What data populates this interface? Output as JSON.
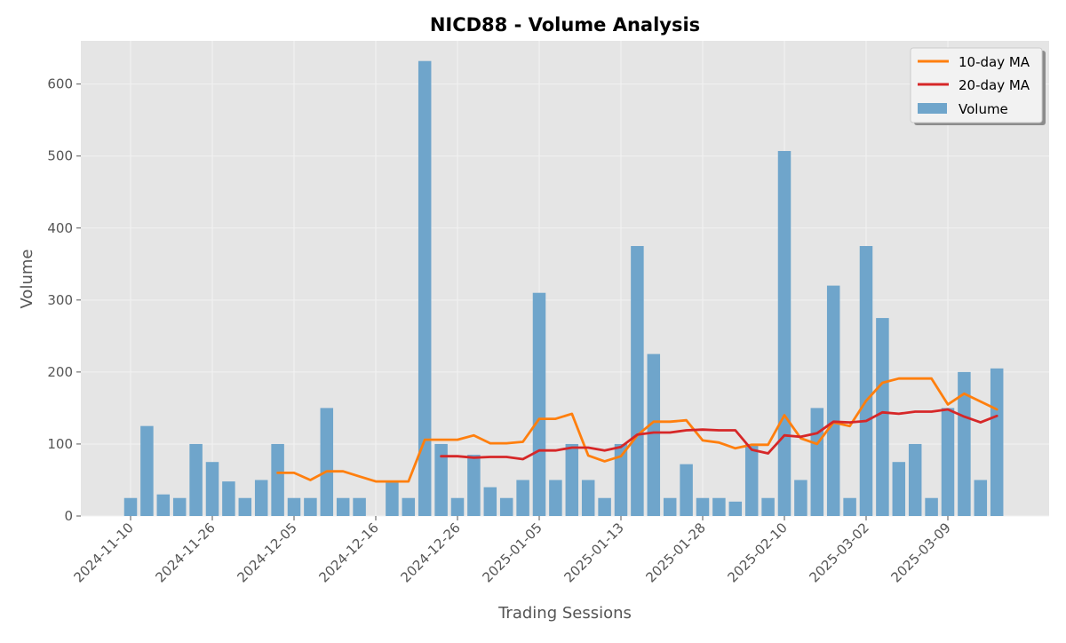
{
  "chart_data": {
    "type": "bar",
    "title": "NICD88 - Volume Analysis",
    "xlabel": "Trading Sessions",
    "ylabel": "Volume",
    "ylim": [
      0,
      660
    ],
    "yticks": [
      0,
      100,
      200,
      300,
      400,
      500,
      600
    ],
    "grid": true,
    "legend_position": "top-right",
    "colors": {
      "volume": "#6fa5cb",
      "ma10": "#ff7f0e",
      "ma20": "#d62728",
      "plot_bg": "#e5e5e5",
      "grid": "#f2f2f2"
    },
    "x_tick_labels": [
      {
        "index": 0,
        "label": "2024-11-10"
      },
      {
        "index": 5,
        "label": "2024-11-26"
      },
      {
        "index": 10,
        "label": "2024-12-05"
      },
      {
        "index": 15,
        "label": "2024-12-16"
      },
      {
        "index": 20,
        "label": "2024-12-26"
      },
      {
        "index": 25,
        "label": "2025-01-05"
      },
      {
        "index": 30,
        "label": "2025-01-13"
      },
      {
        "index": 35,
        "label": "2025-01-28"
      },
      {
        "index": 40,
        "label": "2025-02-10"
      },
      {
        "index": 45,
        "label": "2025-03-02"
      },
      {
        "index": 50,
        "label": "2025-03-09"
      }
    ],
    "series": [
      {
        "name": "Volume",
        "type": "bar",
        "values": [
          25,
          125,
          30,
          25,
          100,
          75,
          48,
          25,
          50,
          100,
          25,
          25,
          150,
          25,
          25,
          0,
          48,
          25,
          632,
          100,
          25,
          85,
          40,
          25,
          50,
          310,
          50,
          100,
          50,
          25,
          100,
          375,
          225,
          25,
          72,
          25,
          25,
          20,
          100,
          25,
          507,
          50,
          150,
          320,
          25,
          375,
          275,
          75,
          100,
          25,
          150,
          200,
          50,
          205
        ]
      },
      {
        "name": "10-day MA",
        "type": "line",
        "values": [
          null,
          null,
          null,
          null,
          null,
          null,
          null,
          null,
          null,
          60,
          60,
          50,
          62,
          62,
          55,
          48,
          48,
          48,
          106,
          106,
          106,
          112,
          101,
          101,
          103,
          135,
          135,
          142,
          84,
          76,
          83,
          112,
          131,
          131,
          133,
          105,
          102,
          94,
          99,
          99,
          140,
          108,
          100,
          130,
          125,
          160,
          185,
          191,
          191,
          191,
          155,
          170,
          159,
          148
        ]
      },
      {
        "name": "20-day MA",
        "type": "line",
        "values": [
          null,
          null,
          null,
          null,
          null,
          null,
          null,
          null,
          null,
          null,
          null,
          null,
          null,
          null,
          null,
          null,
          null,
          null,
          null,
          83,
          83,
          81,
          82,
          82,
          79,
          91,
          91,
          95,
          95,
          91,
          96,
          113,
          116,
          116,
          119,
          120,
          119,
          119,
          92,
          87,
          112,
          110,
          115,
          131,
          130,
          132,
          144,
          142,
          145,
          145,
          148,
          138,
          130,
          139
        ]
      }
    ]
  }
}
